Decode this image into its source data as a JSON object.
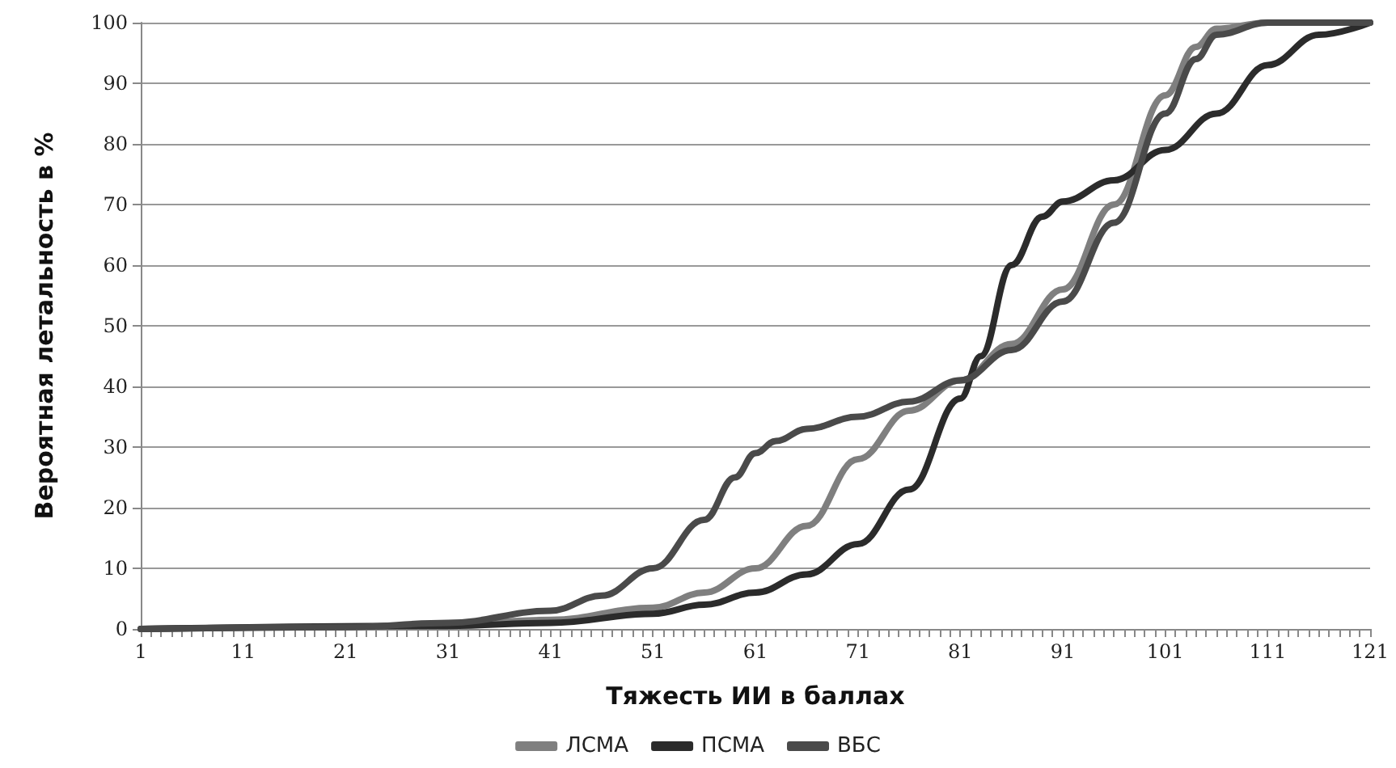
{
  "chart_data": {
    "type": "line",
    "xlabel": "Тяжесть ИИ в баллах",
    "ylabel": "Вероятная летальность в %",
    "xlim": [
      1,
      121
    ],
    "ylim": [
      0,
      100
    ],
    "yticks": [
      0,
      10,
      20,
      30,
      40,
      50,
      60,
      70,
      80,
      90,
      100
    ],
    "xticks": [
      1,
      {
        "value": 2,
        "label": null
      },
      {
        "value": 3,
        "label": null
      },
      {
        "value": 4,
        "label": null
      },
      {
        "value": 5,
        "label": null
      },
      {
        "value": 6,
        "label": null
      },
      {
        "value": 7,
        "label": null
      },
      {
        "value": 8,
        "label": null
      },
      {
        "value": 9,
        "label": null
      },
      {
        "value": 10,
        "label": null
      },
      11,
      {
        "value": 12,
        "label": null
      },
      {
        "value": 13,
        "label": null
      },
      {
        "value": 14,
        "label": null
      },
      {
        "value": 15,
        "label": null
      },
      {
        "value": 16,
        "label": null
      },
      {
        "value": 17,
        "label": null
      },
      {
        "value": 18,
        "label": null
      },
      {
        "value": 19,
        "label": null
      },
      {
        "value": 20,
        "label": null
      },
      21,
      {
        "value": 22,
        "label": null
      },
      {
        "value": 23,
        "label": null
      },
      {
        "value": 24,
        "label": null
      },
      {
        "value": 25,
        "label": null
      },
      {
        "value": 26,
        "label": null
      },
      {
        "value": 27,
        "label": null
      },
      {
        "value": 28,
        "label": null
      },
      {
        "value": 29,
        "label": null
      },
      {
        "value": 30,
        "label": null
      },
      31,
      {
        "value": 32,
        "label": null
      },
      {
        "value": 33,
        "label": null
      },
      {
        "value": 34,
        "label": null
      },
      {
        "value": 35,
        "label": null
      },
      {
        "value": 36,
        "label": null
      },
      {
        "value": 37,
        "label": null
      },
      {
        "value": 38,
        "label": null
      },
      {
        "value": 39,
        "label": null
      },
      {
        "value": 40,
        "label": null
      },
      41,
      {
        "value": 42,
        "label": null
      },
      {
        "value": 43,
        "label": null
      },
      {
        "value": 44,
        "label": null
      },
      {
        "value": 45,
        "label": null
      },
      {
        "value": 46,
        "label": null
      },
      {
        "value": 47,
        "label": null
      },
      {
        "value": 48,
        "label": null
      },
      {
        "value": 49,
        "label": null
      },
      {
        "value": 50,
        "label": null
      },
      51,
      {
        "value": 52,
        "label": null
      },
      {
        "value": 53,
        "label": null
      },
      {
        "value": 54,
        "label": null
      },
      {
        "value": 55,
        "label": null
      },
      {
        "value": 56,
        "label": null
      },
      {
        "value": 57,
        "label": null
      },
      {
        "value": 58,
        "label": null
      },
      {
        "value": 59,
        "label": null
      },
      {
        "value": 60,
        "label": null
      },
      61,
      {
        "value": 62,
        "label": null
      },
      {
        "value": 63,
        "label": null
      },
      {
        "value": 64,
        "label": null
      },
      {
        "value": 65,
        "label": null
      },
      {
        "value": 66,
        "label": null
      },
      {
        "value": 67,
        "label": null
      },
      {
        "value": 68,
        "label": null
      },
      {
        "value": 69,
        "label": null
      },
      {
        "value": 70,
        "label": null
      },
      71,
      {
        "value": 72,
        "label": null
      },
      {
        "value": 73,
        "label": null
      },
      {
        "value": 74,
        "label": null
      },
      {
        "value": 75,
        "label": null
      },
      {
        "value": 76,
        "label": null
      },
      {
        "value": 77,
        "label": null
      },
      {
        "value": 78,
        "label": null
      },
      {
        "value": 79,
        "label": null
      },
      {
        "value": 80,
        "label": null
      },
      81,
      {
        "value": 82,
        "label": null
      },
      {
        "value": 83,
        "label": null
      },
      {
        "value": 84,
        "label": null
      },
      {
        "value": 85,
        "label": null
      },
      {
        "value": 86,
        "label": null
      },
      {
        "value": 87,
        "label": null
      },
      {
        "value": 88,
        "label": null
      },
      {
        "value": 89,
        "label": null
      },
      {
        "value": 90,
        "label": null
      },
      91,
      {
        "value": 92,
        "label": null
      },
      {
        "value": 93,
        "label": null
      },
      {
        "value": 94,
        "label": null
      },
      {
        "value": 95,
        "label": null
      },
      {
        "value": 96,
        "label": null
      },
      {
        "value": 97,
        "label": null
      },
      {
        "value": 98,
        "label": null
      },
      {
        "value": 99,
        "label": null
      },
      {
        "value": 100,
        "label": null
      },
      101,
      {
        "value": 102,
        "label": null
      },
      {
        "value": 103,
        "label": null
      },
      {
        "value": 104,
        "label": null
      },
      {
        "value": 105,
        "label": null
      },
      {
        "value": 106,
        "label": null
      },
      {
        "value": 107,
        "label": null
      },
      {
        "value": 108,
        "label": null
      },
      {
        "value": 109,
        "label": null
      },
      {
        "value": 110,
        "label": null
      },
      111,
      {
        "value": 112,
        "label": null
      },
      {
        "value": 113,
        "label": null
      },
      {
        "value": 114,
        "label": null
      },
      {
        "value": 115,
        "label": null
      },
      {
        "value": 116,
        "label": null
      },
      {
        "value": 117,
        "label": null
      },
      {
        "value": 118,
        "label": null
      },
      {
        "value": 119,
        "label": null
      },
      {
        "value": 120,
        "label": null
      },
      121
    ],
    "grid": "y",
    "legend": "bottom",
    "marker": "none",
    "line_style": "solid",
    "series": [
      {
        "name": "ЛСМА",
        "color": "#7f7f7f",
        "x": [
          1,
          21,
          31,
          41,
          51,
          56,
          61,
          66,
          71,
          76,
          81,
          86,
          91,
          96,
          101,
          104,
          106,
          111,
          121
        ],
        "values": [
          0,
          0.3,
          0.8,
          1.5,
          3.5,
          6,
          10,
          17,
          28,
          36,
          41,
          47,
          56,
          70,
          88,
          96,
          99,
          100,
          100
        ]
      },
      {
        "name": "ПСМА",
        "color": "#2b2b2b",
        "x": [
          1,
          31,
          41,
          51,
          56,
          61,
          66,
          71,
          76,
          81,
          83,
          86,
          89,
          91,
          96,
          101,
          106,
          111,
          116,
          121
        ],
        "values": [
          0,
          0.5,
          1,
          2.5,
          4,
          6,
          9,
          14,
          23,
          38,
          45,
          60,
          68,
          70.5,
          74,
          79,
          85,
          93,
          98,
          100
        ]
      },
      {
        "name": "ВБС",
        "color": "#4a4a4a",
        "x": [
          1,
          21,
          31,
          41,
          46,
          51,
          56,
          59,
          61,
          63,
          66,
          71,
          76,
          81,
          86,
          91,
          96,
          101,
          104,
          106,
          111,
          121
        ],
        "values": [
          0,
          0.3,
          1,
          3,
          5.5,
          10,
          18,
          25,
          29,
          31,
          33,
          35,
          37.5,
          41,
          46,
          54,
          67,
          85,
          94,
          98,
          100,
          100
        ]
      }
    ]
  }
}
